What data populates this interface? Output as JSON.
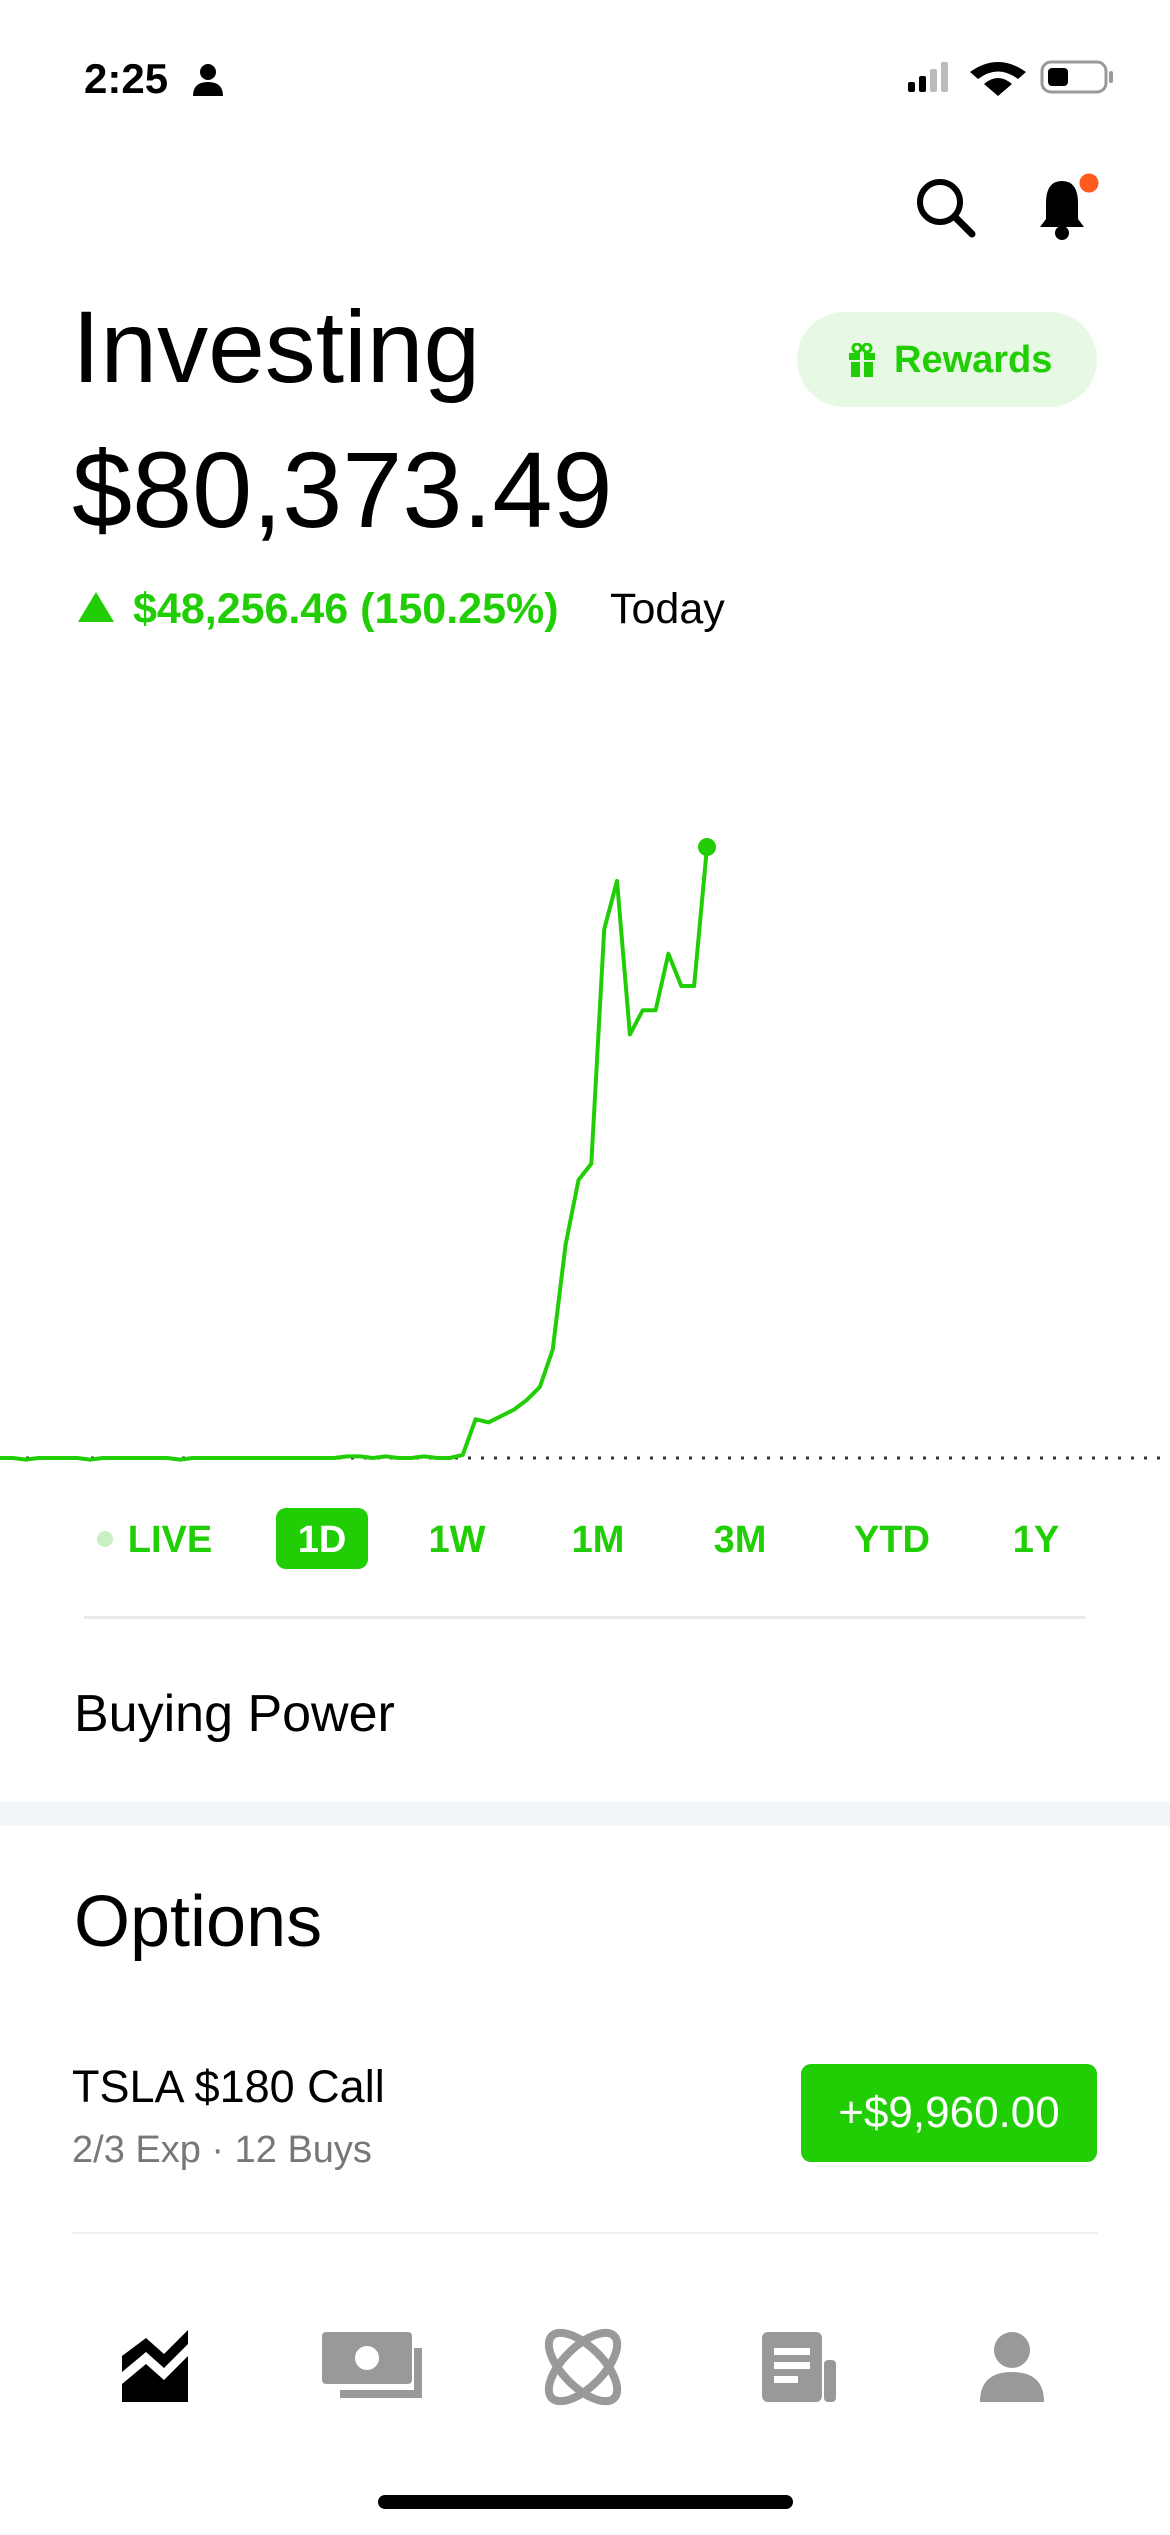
{
  "status_bar": {
    "time": "2:25"
  },
  "header": {
    "title": "Investing",
    "rewards": "Rewards"
  },
  "portfolio": {
    "value": "$80,373.49",
    "change": "$48,256.46 (150.25%)",
    "period": "Today"
  },
  "chart_data": {
    "type": "line",
    "color": "#21ce06",
    "values": [
      32117,
      32117,
      31989,
      32117,
      32117,
      32117,
      32117,
      31989,
      32117,
      32117,
      32117,
      32117,
      32117,
      32117,
      31989,
      32117,
      32117,
      32117,
      32117,
      32117,
      32117,
      32117,
      32117,
      32117,
      32117,
      32117,
      32117,
      32245,
      32245,
      32117,
      32245,
      32117,
      32117,
      32245,
      32117,
      32117,
      32372,
      35181,
      34926,
      35436,
      35947,
      36713,
      37734,
      40670,
      48968,
      54075,
      55351,
      73862,
      77693,
      65564,
      67479,
      67479,
      71947,
      69394,
      69394,
      80373.49
    ],
    "baseline": 32117.03
  },
  "ranges": [
    "LIVE",
    "1D",
    "1W",
    "1M",
    "3M",
    "YTD",
    "1Y"
  ],
  "active_range": 1,
  "buying_power": {
    "label": "Buying Power"
  },
  "options": {
    "title": "Options",
    "items": [
      {
        "name": "TSLA $180 Call",
        "detail": "2/3 Exp · 12 Buys",
        "change": "+$9,960.00"
      }
    ]
  }
}
